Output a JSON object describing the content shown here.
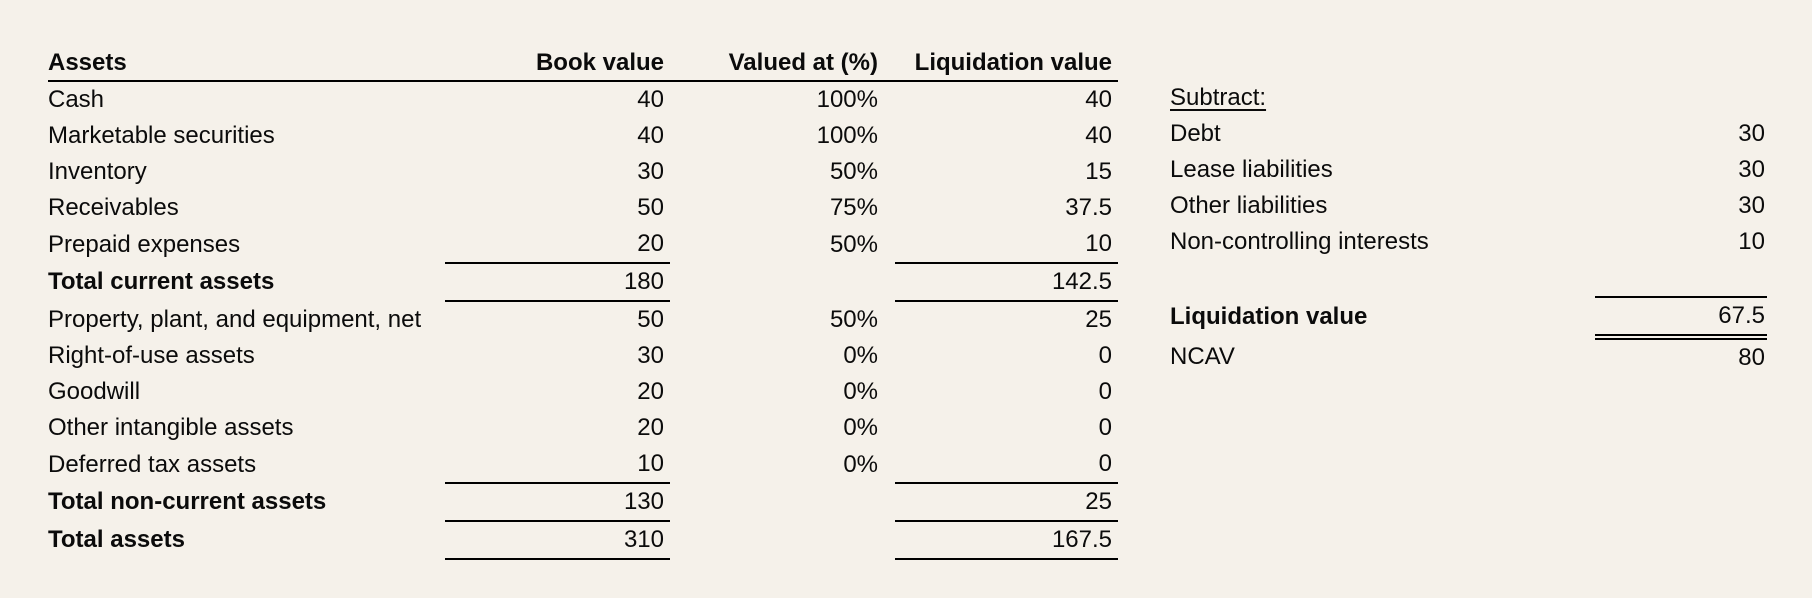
{
  "colors": {
    "background": "#f5f1ea",
    "text": "#0b0b0b",
    "rule": "#000000"
  },
  "assets_table": {
    "headers": [
      "Assets",
      "Book value",
      "Valued at (%)",
      "Liquidation value"
    ],
    "rows": [
      {
        "label": "Cash",
        "book_value": "40",
        "valued_at": "100%",
        "liquidation_value": "40",
        "bold": false,
        "rule_below": false
      },
      {
        "label": "Marketable securities",
        "book_value": "40",
        "valued_at": "100%",
        "liquidation_value": "40",
        "bold": false,
        "rule_below": false
      },
      {
        "label": "Inventory",
        "book_value": "30",
        "valued_at": "50%",
        "liquidation_value": "15",
        "bold": false,
        "rule_below": false
      },
      {
        "label": "Receivables",
        "book_value": "50",
        "valued_at": "75%",
        "liquidation_value": "37.5",
        "bold": false,
        "rule_below": false
      },
      {
        "label": "Prepaid expenses",
        "book_value": "20",
        "valued_at": "50%",
        "liquidation_value": "10",
        "bold": false,
        "rule_below": true
      },
      {
        "label": "Total current assets",
        "book_value": "180",
        "valued_at": "",
        "liquidation_value": "142.5",
        "bold": true,
        "rule_below": true
      },
      {
        "label": "Property, plant, and equipment, net",
        "book_value": "50",
        "valued_at": "50%",
        "liquidation_value": "25",
        "bold": false,
        "rule_below": false
      },
      {
        "label": "Right-of-use assets",
        "book_value": "30",
        "valued_at": "0%",
        "liquidation_value": "0",
        "bold": false,
        "rule_below": false
      },
      {
        "label": "Goodwill",
        "book_value": "20",
        "valued_at": "0%",
        "liquidation_value": "0",
        "bold": false,
        "rule_below": false
      },
      {
        "label": "Other intangible assets",
        "book_value": "20",
        "valued_at": "0%",
        "liquidation_value": "0",
        "bold": false,
        "rule_below": false
      },
      {
        "label": "Deferred tax assets",
        "book_value": "10",
        "valued_at": "0%",
        "liquidation_value": "0",
        "bold": false,
        "rule_below": true
      },
      {
        "label": "Total non-current assets",
        "book_value": "130",
        "valued_at": "",
        "liquidation_value": "25",
        "bold": true,
        "rule_below": true
      },
      {
        "label": "Total assets",
        "book_value": "310",
        "valued_at": "",
        "liquidation_value": "167.5",
        "bold": true,
        "rule_below": true
      }
    ]
  },
  "subtract_panel": {
    "title": "Subtract:",
    "rows": [
      {
        "label": "Debt",
        "value": "30"
      },
      {
        "label": "Lease liabilities",
        "value": "30"
      },
      {
        "label": "Other liabilities",
        "value": "30"
      },
      {
        "label": "Non-controlling interests",
        "value": "10"
      }
    ],
    "liquidation_value": {
      "label": "Liquidation value",
      "value": "67.5"
    },
    "ncav": {
      "label": "NCAV",
      "value": "80"
    }
  }
}
